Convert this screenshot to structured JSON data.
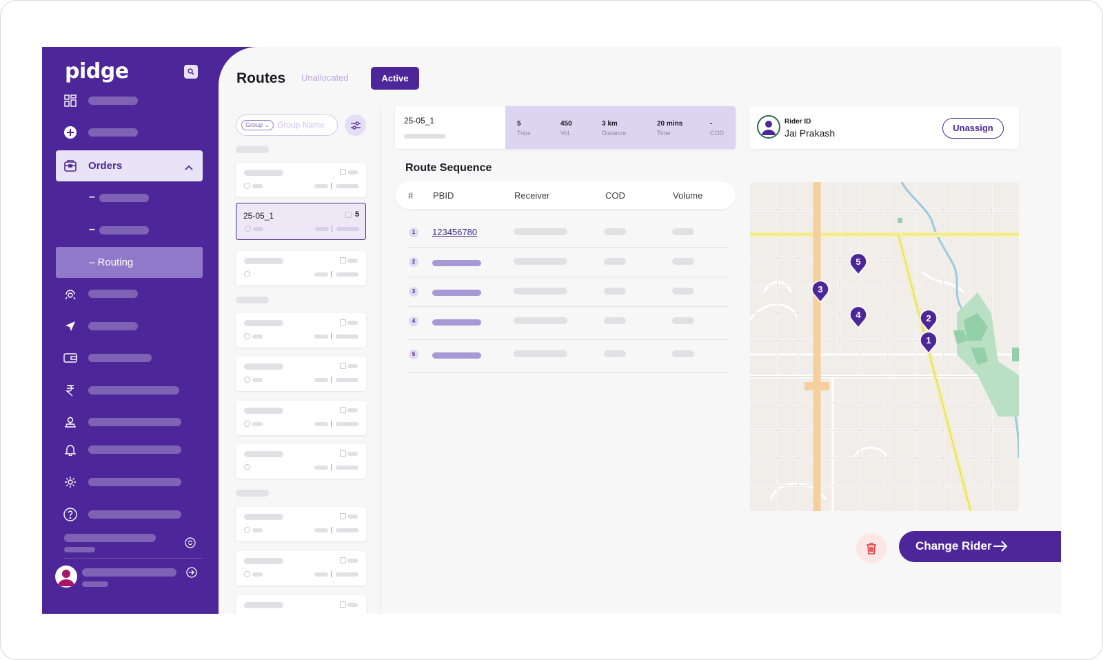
{
  "app": {
    "logo": "pidge",
    "brand_color": "#4d2799",
    "accent_light": "#e9e3f7"
  },
  "sidebar": {
    "items": [
      {
        "icon": "dashboard-icon"
      },
      {
        "icon": "plus-circle-icon"
      },
      {
        "icon": "orders-icon",
        "label": "Orders",
        "expanded": true
      },
      {
        "icon": "rider-icon"
      },
      {
        "icon": "navigation-icon"
      },
      {
        "icon": "wallet-icon"
      },
      {
        "icon": "rupee-icon"
      },
      {
        "icon": "location-user-icon"
      },
      {
        "icon": "bell-icon"
      },
      {
        "icon": "settings-icon"
      },
      {
        "icon": "help-icon"
      }
    ],
    "submenu": {
      "routing_label": "Routing",
      "dash": "–"
    }
  },
  "header": {
    "title": "Routes",
    "tabs": [
      {
        "label": "Unallocated",
        "active": false
      },
      {
        "label": "Active",
        "active": true
      }
    ]
  },
  "groups": {
    "chip": "Group",
    "placeholder": "Group Name",
    "selected": {
      "name": "25-05_1",
      "count": "5"
    }
  },
  "route_summary": {
    "name": "25-05_1",
    "stats": [
      {
        "value": "5",
        "label": "Trips"
      },
      {
        "value": "450",
        "label": "Vol."
      },
      {
        "value": "3 km",
        "label": "Distance"
      },
      {
        "value": "20 mins",
        "label": "Time"
      },
      {
        "value": "-",
        "label": "COD"
      }
    ]
  },
  "rider": {
    "id_label": "Rider ID",
    "name": "Jai Prakash",
    "unassign_label": "Unassign"
  },
  "route_sequence": {
    "title": "Route Sequence",
    "columns": [
      "#",
      "PBID",
      "Receiver",
      "COD",
      "Volume"
    ],
    "rows": [
      {
        "num": "1",
        "pbid": "123456780"
      },
      {
        "num": "2",
        "pbid": ""
      },
      {
        "num": "3",
        "pbid": ""
      },
      {
        "num": "4",
        "pbid": ""
      },
      {
        "num": "5",
        "pbid": ""
      }
    ]
  },
  "map": {
    "markers": [
      "5",
      "3",
      "4",
      "2",
      "1"
    ]
  },
  "actions": {
    "change_rider_label": "Change Rider"
  }
}
